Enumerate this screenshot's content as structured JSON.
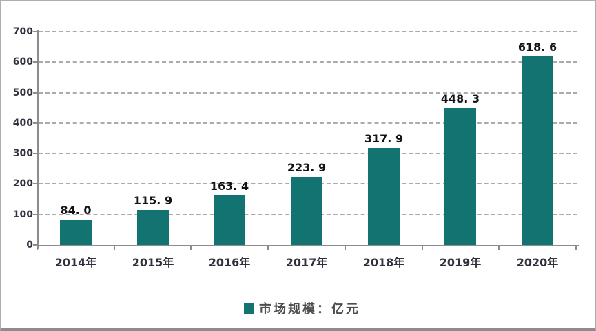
{
  "chart_data": {
    "type": "bar",
    "title": "",
    "xlabel": "",
    "ylabel": "",
    "categories": [
      "2014年",
      "2015年",
      "2016年",
      "2017年",
      "2018年",
      "2019年",
      "2020年"
    ],
    "values": [
      84.0,
      115.9,
      163.4,
      223.9,
      317.9,
      448.3,
      618.6
    ],
    "value_labels": [
      "84. 0",
      "115. 9",
      "163. 4",
      "223. 9",
      "317. 9",
      "448. 3",
      "618. 6"
    ],
    "ylim": [
      0,
      700
    ],
    "y_ticks": [
      0,
      100,
      200,
      300,
      400,
      500,
      600,
      700
    ],
    "grid": "horizontal-dashed",
    "legend": "市场规模：亿元",
    "legend_position": "bottom-center",
    "bar_color": "#127370",
    "axis_color": "#8c8c8c",
    "grid_color": "#ababab"
  }
}
